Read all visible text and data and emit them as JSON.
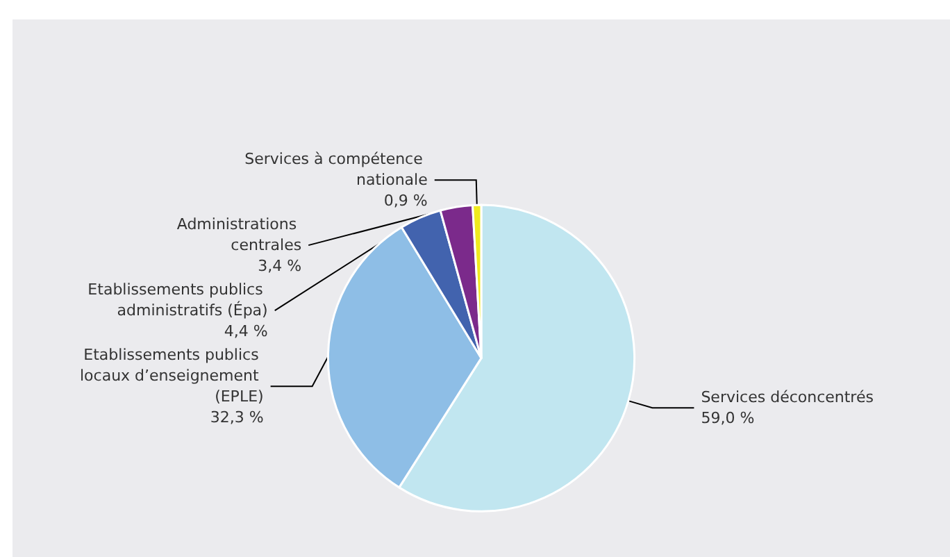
{
  "chart_data": {
    "type": "pie",
    "categories": [
      "Services déconcentrés",
      "Etablissements publics locaux d’enseignement (EPLE)",
      "Etablissements publics administratifs (Épa)",
      "Administrations centrales",
      "Services à compétence nationale"
    ],
    "values": [
      59.0,
      32.3,
      4.4,
      3.4,
      0.9
    ],
    "value_labels": [
      "59,0 %",
      "32,3 %",
      "4,4 %",
      "3,4 %",
      "0,9 %"
    ],
    "colors": [
      "#c1e6f0",
      "#8ebee6",
      "#4263ae",
      "#7b2a8b",
      "#f0ea1e"
    ],
    "legend": false
  }
}
